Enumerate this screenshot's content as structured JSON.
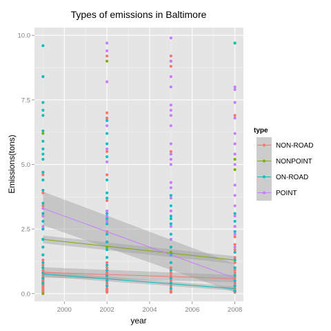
{
  "chart_data": {
    "type": "scatter",
    "title": "Types of emissions in Baltimore",
    "xlabel": "year",
    "ylabel": "Emissions(tons)",
    "xlim": [
      1998.6,
      2008.4
    ],
    "ylim": [
      -0.3,
      10.3
    ],
    "x_ticks": [
      2000,
      2002,
      2004,
      2006,
      2008
    ],
    "x_tick_labels": [
      "2000",
      "2002",
      "2004",
      "2006",
      "2008"
    ],
    "y_ticks": [
      0,
      2.5,
      5,
      7.5,
      10
    ],
    "y_tick_labels": [
      "0.0",
      "2.5",
      "5.0",
      "7.5",
      "10.0"
    ],
    "grid": true,
    "background": "#e5e5e5",
    "legend": {
      "title": "type",
      "position": "right"
    },
    "x_years": [
      1999,
      2002,
      2005,
      2008
    ],
    "series": [
      {
        "name": "NON-ROAD",
        "color": "#f8766d",
        "trend": {
          "x": [
            1999,
            2008
          ],
          "y": [
            0.82,
            0.58
          ]
        },
        "band": {
          "lower": [
            0.62,
            0.44
          ],
          "upper": [
            1.02,
            0.72
          ]
        },
        "points": {
          "1999": [
            0.05,
            0.1,
            0.15,
            0.2,
            0.25,
            0.3,
            0.35,
            0.4,
            0.45,
            0.5,
            0.55,
            0.6,
            0.7,
            0.8,
            0.9,
            1.0,
            1.1,
            1.3,
            1.5,
            1.8,
            2.1,
            2.5,
            3.0,
            3.4,
            3.9,
            4.6
          ],
          "2002": [
            0.05,
            0.1,
            0.15,
            0.2,
            0.3,
            0.4,
            0.5,
            0.6,
            0.7,
            0.8,
            0.9,
            1.0,
            1.2,
            1.4,
            1.7,
            2.0,
            2.4,
            2.9,
            3.2,
            3.6,
            4.6,
            5.5,
            6.8,
            7.0,
            9.2
          ],
          "2005": [
            0.05,
            0.1,
            0.2,
            0.3,
            0.4,
            0.5,
            0.6,
            0.7,
            0.8,
            0.9,
            1.0,
            1.2,
            1.5,
            1.8,
            2.1,
            2.7,
            3.2,
            3.8,
            5.5,
            8.8,
            9.0,
            9.2
          ],
          "2008": [
            0.05,
            0.1,
            0.2,
            0.3,
            0.4,
            0.5,
            0.6,
            0.7,
            0.8,
            0.9,
            1.0,
            1.2,
            1.4,
            1.7,
            1.9,
            2.2,
            2.6,
            5.8,
            6.9
          ]
        }
      },
      {
        "name": "NONPOINT",
        "color": "#7cae00",
        "trend": {
          "x": [
            1999,
            2008
          ],
          "y": [
            2.1,
            1.3
          ]
        },
        "band": {
          "lower": [
            1.95,
            1.15
          ],
          "upper": [
            2.25,
            1.45
          ]
        },
        "points": {
          "1999": [
            0.0,
            2.1,
            6.2
          ],
          "2002": [
            1.8,
            9.0
          ],
          "2005": [
            1.6,
            9.0
          ],
          "2008": [
            1.3,
            4.8,
            5.2,
            9.7
          ]
        }
      },
      {
        "name": "ON-ROAD",
        "color": "#00bfc4",
        "trend": {
          "x": [
            1999,
            2008
          ],
          "y": [
            0.76,
            0.19
          ]
        },
        "band": {
          "lower": [
            0.66,
            0.11
          ],
          "upper": [
            0.86,
            0.27
          ]
        },
        "points": {
          "1999": [
            0.4,
            0.6,
            0.8,
            1.0,
            1.2,
            1.5,
            1.8,
            2.1,
            2.5,
            2.8,
            3.1,
            3.5,
            4.0,
            4.4,
            4.7,
            5.2,
            5.4,
            5.6,
            5.9,
            6.3,
            6.9,
            7.1,
            7.4,
            8.4,
            9.6
          ],
          "2002": [
            0.3,
            0.5,
            0.7,
            0.9,
            1.1,
            1.4,
            1.7,
            2.0,
            2.3,
            2.7,
            2.9,
            3.1,
            3.7,
            3.9,
            4.4,
            5.3,
            5.8,
            6.2,
            6.7
          ],
          "2005": [
            0.2,
            0.4,
            0.6,
            0.9,
            1.2,
            1.5,
            1.8,
            2.1,
            2.3,
            2.7,
            2.9,
            3.0,
            3.4,
            3.8,
            5.4
          ],
          "2008": [
            0.1,
            0.3,
            0.5,
            0.7,
            1.0,
            1.3,
            1.6,
            2.4,
            2.8,
            3.1,
            9.7
          ]
        }
      },
      {
        "name": "POINT",
        "color": "#c77cff",
        "trend": {
          "x": [
            1999,
            2008
          ],
          "y": [
            3.3,
            0.6
          ]
        },
        "band": {
          "lower": [
            2.65,
            0.05
          ],
          "upper": [
            3.95,
            1.15
          ]
        },
        "points": {
          "1999": [
            2.6,
            3.0,
            3.3
          ],
          "2002": [
            2.8,
            3.0,
            3.2,
            5.1,
            5.6,
            6.5,
            8.2,
            9.4,
            9.7
          ],
          "2005": [
            2.1,
            2.6,
            3.2,
            3.7,
            4.1,
            4.3,
            5.0,
            5.2,
            5.4,
            5.8,
            6.5,
            6.9,
            7.1,
            7.3,
            8.0,
            8.4,
            9.0,
            9.9
          ],
          "2008": [
            1.8,
            2.3,
            2.6,
            3.0,
            3.4,
            3.8,
            4.2,
            5.0,
            5.4,
            5.8,
            6.2,
            6.8,
            7.4,
            7.9,
            8.0
          ]
        }
      }
    ]
  }
}
